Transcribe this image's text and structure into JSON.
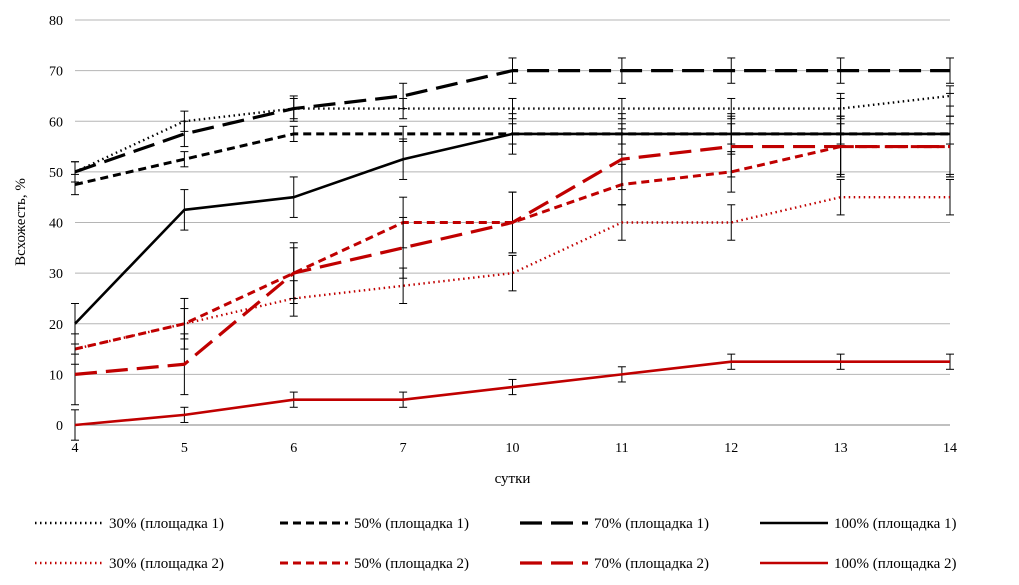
{
  "chart_data": {
    "type": "line",
    "title": "",
    "xlabel": "сутки",
    "ylabel": "Всхожесть, %",
    "categories": [
      "4",
      "5",
      "6",
      "7",
      "10",
      "11",
      "12",
      "13",
      "14"
    ],
    "ylim": [
      0,
      80
    ],
    "yticks": [
      "0",
      "10",
      "20",
      "30",
      "40",
      "50",
      "60",
      "70",
      "80"
    ],
    "grid": "horizontal",
    "legend_placement": "bottom",
    "series": [
      {
        "name": "30% (площадка 1)",
        "color": "#000000",
        "dash": "dotted",
        "values": [
          50,
          60,
          62.5,
          62.5,
          62.5,
          62.5,
          62.5,
          62.5,
          65
        ],
        "error": [
          2,
          2,
          2,
          2,
          2,
          2,
          2,
          2,
          2
        ]
      },
      {
        "name": "50% (площадка 1)",
        "color": "#000000",
        "dash": "dashed",
        "values": [
          47.5,
          52.5,
          57.5,
          57.5,
          57.5,
          57.5,
          57.5,
          57.5,
          57.5
        ],
        "error": [
          2,
          1.5,
          1.5,
          1.5,
          2,
          2,
          2,
          2,
          2
        ]
      },
      {
        "name": "70% (площадка 1)",
        "color": "#000000",
        "dash": "longdash",
        "values": [
          50,
          57.5,
          62.5,
          65,
          70,
          70,
          70,
          70,
          70
        ],
        "error": [
          2,
          2.5,
          2.5,
          2.5,
          2.5,
          2.5,
          2.5,
          2.5,
          2.5
        ]
      },
      {
        "name": "100% (площадка 1)",
        "color": "#000000",
        "dash": "solid",
        "values": [
          20,
          42.5,
          45,
          52.5,
          57.5,
          57.5,
          57.5,
          57.5,
          57.5
        ],
        "error": [
          4,
          4,
          4,
          4,
          4,
          4,
          4,
          8,
          8
        ]
      },
      {
        "name": "30% (площадка 2)",
        "color": "#c00000",
        "dash": "dotted",
        "values": [
          15,
          20,
          25,
          27.5,
          30,
          40,
          40,
          45,
          45
        ],
        "error": [
          3,
          3,
          3.5,
          3.5,
          3.5,
          3.5,
          3.5,
          3.5,
          3.5
        ]
      },
      {
        "name": "50% (площадка 2)",
        "color": "#c00000",
        "dash": "dashed",
        "values": [
          15,
          20,
          30,
          40,
          40,
          47.5,
          50,
          55,
          55
        ],
        "error": [
          1,
          5,
          5,
          5,
          6,
          4,
          4,
          6,
          6
        ]
      },
      {
        "name": "70% (площадка 2)",
        "color": "#c00000",
        "dash": "longdash",
        "values": [
          10,
          12,
          30,
          35,
          40,
          52.5,
          55,
          55,
          55
        ],
        "error": [
          6,
          6,
          6,
          6,
          6,
          6,
          6,
          6,
          6
        ]
      },
      {
        "name": "100% (площадка 2)",
        "color": "#c00000",
        "dash": "solid",
        "values": [
          0,
          2,
          5,
          5,
          7.5,
          10,
          12.5,
          12.5,
          12.5
        ],
        "error": [
          3,
          1.5,
          1.5,
          1.5,
          1.5,
          1.5,
          1.5,
          1.5,
          1.5
        ]
      }
    ]
  }
}
